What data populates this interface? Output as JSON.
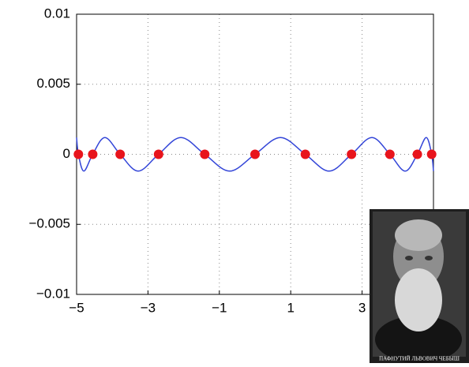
{
  "chart_data": {
    "type": "line",
    "xlim": [
      -5,
      5
    ],
    "ylim": [
      -0.01,
      0.01
    ],
    "xticks": [
      {
        "value": -5,
        "label": "−5"
      },
      {
        "value": -3,
        "label": "−3"
      },
      {
        "value": -1,
        "label": "−1"
      },
      1,
      3
    ],
    "yticks": [
      0.01,
      0.005,
      0,
      {
        "value": -0.005,
        "label": "−0.005"
      },
      {
        "value": -0.01,
        "label": "−0.01"
      }
    ],
    "grid": true,
    "line": {
      "color": "#3446d8",
      "x": [
        -5,
        -4.949,
        -4.797,
        -4.548,
        -4.206,
        -3.779,
        -3.274,
        -2.703,
        -2.077,
        -1.409,
        -0.712,
        0,
        0.712,
        1.409,
        2.077,
        2.703,
        3.274,
        3.779,
        4.206,
        4.548,
        4.797,
        4.949,
        5
      ],
      "values": [
        0.0012,
        0,
        -0.0012,
        0,
        0.0012,
        0,
        -0.0012,
        0,
        0.0012,
        0,
        -0.0012,
        0,
        0.0012,
        0,
        -0.0012,
        0,
        0.0012,
        0,
        -0.0012,
        0,
        0.0012,
        0,
        -0.0012
      ]
    },
    "nodes": {
      "color": "#e8141c",
      "x": [
        -4.949,
        -4.548,
        -3.779,
        -2.703,
        -1.409,
        0,
        1.409,
        2.703,
        3.779,
        4.548,
        4.949
      ],
      "values": [
        0,
        0,
        0,
        0,
        0,
        0,
        0,
        0,
        0,
        0,
        0
      ]
    }
  },
  "portrait": {
    "caption": "ПАФНУТИЙ ЛЬВОВИЧ ЧЕБЫШ"
  }
}
